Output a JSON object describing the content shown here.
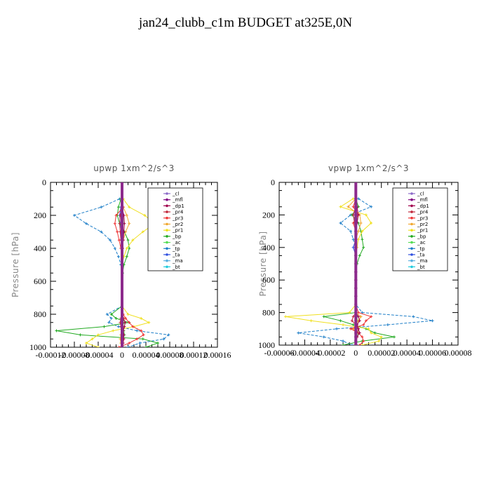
{
  "title": "jan24_clubb_c1m  BUDGET at325E,0N",
  "chart_data": [
    {
      "type": "line",
      "title": "upwp   1xm^2/s^3",
      "ylabel": "Pressure [hPa]",
      "xlim": [
        -0.00012,
        0.00016
      ],
      "xticks": [
        "-0.00012",
        "-0.00008",
        "-0.00004",
        "0",
        "0.00004",
        "0.00008",
        "0.00012",
        "0.00016"
      ],
      "ylim": [
        1000,
        0
      ],
      "yticks": [
        "0",
        "200",
        "400",
        "600",
        "800",
        "1000"
      ],
      "legend_position": "top-right",
      "pressure": [
        100,
        150,
        200,
        250,
        300,
        350,
        400,
        450,
        500,
        550,
        600,
        650,
        700,
        750,
        800,
        825,
        850,
        875,
        900,
        925,
        950,
        975,
        1000
      ],
      "series": [
        {
          "name": "_cl",
          "color": "#8c6bc8",
          "values": [
            0,
            0,
            0,
            0,
            0,
            0,
            0,
            0,
            0,
            0,
            0,
            0,
            0,
            0,
            0,
            0,
            0,
            0,
            0,
            0,
            0,
            0,
            0
          ]
        },
        {
          "name": "_mfl",
          "color": "#800080",
          "values": [
            0,
            0,
            0,
            0,
            0,
            0,
            0,
            0,
            0,
            0,
            0,
            0,
            0,
            0,
            0,
            0,
            0,
            0,
            0,
            0,
            0,
            0,
            0
          ]
        },
        {
          "name": "_dp1",
          "color": "#a0004c",
          "values": [
            0,
            0,
            3e-06,
            4e-06,
            3e-06,
            2e-06,
            1e-06,
            0,
            0,
            0,
            0,
            0,
            0,
            0,
            0,
            2e-06,
            5e-06,
            4e-06,
            2e-06,
            3e-06,
            2e-06,
            1e-06,
            0
          ]
        },
        {
          "name": "_pr4",
          "color": "#c0283c",
          "values": [
            0,
            0,
            -3e-06,
            -4e-06,
            -3e-06,
            -2e-06,
            0,
            0,
            0,
            0,
            0,
            0,
            0,
            0,
            0,
            -2e-06,
            -3e-06,
            -2e-06,
            0,
            2e-06,
            3e-06,
            2e-06,
            0
          ]
        },
        {
          "name": "_pr3",
          "color": "#ee3333",
          "values": [
            0,
            2e-06,
            -1e-05,
            -1.2e-05,
            -8e-06,
            -5e-06,
            -2e-06,
            0,
            0,
            0,
            0,
            0,
            0,
            0,
            2e-06,
            6e-06,
            1.2e-05,
            1.8e-05,
            3.2e-05,
            3.6e-05,
            2.5e-05,
            1.2e-05,
            -5e-06
          ]
        },
        {
          "name": "_pr2",
          "color": "#f0a830",
          "values": [
            0,
            2e-06,
            8e-06,
            1.2e-05,
            6e-06,
            2e-06,
            1e-06,
            0,
            0,
            0,
            0,
            0,
            0,
            0,
            0,
            3e-06,
            5e-06,
            4e-06,
            0,
            -2e-06,
            -3e-06,
            -2e-06,
            0
          ]
        },
        {
          "name": "_pr1",
          "color": "#f0e020",
          "values": [
            2e-06,
            1.2e-05,
            3.8e-05,
            5.5e-05,
            3.5e-05,
            1.8e-05,
            8e-06,
            3e-06,
            0,
            0,
            0,
            0,
            0,
            0,
            1e-05,
            3.2e-05,
            4.5e-05,
            2e-05,
            -1.5e-05,
            -4e-05,
            -5e-05,
            -6e-05,
            -4e-05
          ]
        },
        {
          "name": "_bp",
          "color": "#22aa22",
          "values": [
            -2e-06,
            -6e-06,
            -8e-06,
            -4e-06,
            4e-06,
            1e-05,
            1.2e-05,
            8e-06,
            3e-06,
            1e-06,
            0,
            0,
            0,
            0,
            -1.8e-05,
            -1e-05,
            1.2e-05,
            -3e-05,
            -0.00011,
            -7e-05,
            3.5e-05,
            6e-05,
            4e-05
          ]
        },
        {
          "name": "_ac",
          "color": "#55dd55",
          "values": [
            0,
            1e-06,
            2e-06,
            2e-06,
            1e-06,
            0,
            0,
            0,
            0,
            0,
            0,
            0,
            0,
            0,
            0,
            1e-06,
            2e-06,
            2e-06,
            3e-06,
            4e-06,
            2e-06,
            1e-06,
            0
          ]
        },
        {
          "name": "_tp",
          "color": "#1f7fc8",
          "values": [
            -4e-06,
            -3.5e-05,
            -8e-05,
            -6e-05,
            -3.5e-05,
            -2e-05,
            -1.2e-05,
            -6e-06,
            -2e-06,
            0,
            0,
            0,
            0,
            0,
            -2.5e-05,
            -1.8e-05,
            -2.2e-05,
            -6e-06,
            2.5e-05,
            7.8e-05,
            7e-05,
            3e-05,
            1e-05
          ]
        },
        {
          "name": "_ta",
          "color": "#3050e0",
          "values": [
            0,
            -2e-06,
            -4e-06,
            -3e-06,
            -1e-06,
            0,
            0,
            0,
            0,
            0,
            0,
            0,
            0,
            0,
            0,
            0,
            0,
            0,
            1e-06,
            2e-06,
            1e-06,
            0,
            0
          ]
        },
        {
          "name": "_ma",
          "color": "#5ab0e0",
          "values": [
            0,
            0,
            0,
            0,
            0,
            0,
            0,
            0,
            0,
            0,
            0,
            0,
            0,
            0,
            0,
            0,
            0,
            0,
            0,
            0,
            0,
            0,
            0
          ]
        },
        {
          "name": "_bt",
          "color": "#22ccdd",
          "values": [
            0,
            0,
            0,
            0,
            0,
            0,
            0,
            0,
            0,
            0,
            0,
            0,
            0,
            0,
            0,
            0,
            0,
            0,
            0,
            0,
            0,
            0,
            0
          ]
        }
      ]
    },
    {
      "type": "line",
      "title": "vpwp   1xm^2/s^3",
      "ylabel": "Pressure [hPa]",
      "xlim": [
        -6e-05,
        8e-05
      ],
      "xticks": [
        "-0.00006",
        "-0.00004",
        "-0.00002",
        "0",
        "0.00002",
        "0.00004",
        "0.00006",
        "0.00008"
      ],
      "ylim": [
        1000,
        0
      ],
      "yticks": [
        "0",
        "200",
        "400",
        "600",
        "800",
        "1000"
      ],
      "legend_position": "top-right",
      "pressure": [
        100,
        150,
        200,
        250,
        300,
        350,
        400,
        450,
        500,
        550,
        600,
        650,
        700,
        750,
        800,
        825,
        850,
        875,
        900,
        925,
        950,
        975,
        1000
      ],
      "series": [
        {
          "name": "_cl",
          "color": "#8c6bc8",
          "values": [
            0,
            0,
            0,
            0,
            0,
            0,
            0,
            0,
            0,
            0,
            0,
            0,
            0,
            0,
            0,
            0,
            0,
            0,
            0,
            0,
            0,
            0,
            0
          ]
        },
        {
          "name": "_mfl",
          "color": "#800080",
          "values": [
            0,
            0,
            0,
            0,
            0,
            0,
            0,
            0,
            0,
            0,
            0,
            0,
            0,
            0,
            0,
            0,
            0,
            0,
            0,
            0,
            0,
            0,
            0
          ]
        },
        {
          "name": "_dp1",
          "color": "#a0004c",
          "values": [
            0,
            1e-06,
            2e-06,
            1e-06,
            0,
            0,
            0,
            0,
            0,
            0,
            0,
            0,
            0,
            0,
            0,
            2e-06,
            3e-06,
            1e-06,
            2e-06,
            3e-06,
            1e-06,
            0,
            0
          ]
        },
        {
          "name": "_pr4",
          "color": "#c0283c",
          "values": [
            0,
            0,
            -2e-06,
            -1e-06,
            0,
            0,
            0,
            0,
            0,
            0,
            0,
            0,
            0,
            0,
            0,
            -2e-06,
            -3e-06,
            0,
            2e-06,
            1e-06,
            0,
            0,
            0
          ]
        },
        {
          "name": "_pr3",
          "color": "#ee3333",
          "values": [
            0,
            -2e-06,
            2e-06,
            -2e-06,
            0,
            0,
            0,
            0,
            0,
            0,
            0,
            0,
            0,
            0,
            2e-06,
            1.2e-05,
            8e-06,
            6e-06,
            -4e-06,
            2e-06,
            5e-06,
            6e-06,
            3e-06
          ]
        },
        {
          "name": "_pr2",
          "color": "#f0a830",
          "values": [
            0,
            -6e-06,
            3e-06,
            4e-06,
            2e-06,
            0,
            0,
            0,
            0,
            0,
            0,
            0,
            0,
            0,
            0,
            4e-06,
            2e-06,
            0,
            -2e-06,
            0,
            1e-06,
            0,
            0
          ]
        },
        {
          "name": "_pr1",
          "color": "#f0e020",
          "values": [
            -2e-06,
            -1.2e-05,
            8e-06,
            1.2e-05,
            5e-06,
            2e-06,
            1e-06,
            0,
            0,
            0,
            0,
            0,
            0,
            0,
            -5e-06,
            -5.5e-05,
            -3.5e-05,
            -1e-05,
            1e-05,
            1.2e-05,
            2e-05,
            1.8e-05,
            5e-06
          ]
        },
        {
          "name": "_bp",
          "color": "#22aa22",
          "values": [
            0,
            2e-06,
            -3e-06,
            2e-06,
            4e-06,
            5e-06,
            6e-06,
            3e-06,
            1e-06,
            0,
            0,
            0,
            0,
            0,
            0,
            -2.5e-05,
            -1.2e-05,
            -2e-06,
            8e-06,
            1.5e-05,
            3e-05,
            5e-06,
            -1e-05
          ]
        },
        {
          "name": "_ac",
          "color": "#55dd55",
          "values": [
            0,
            0,
            1e-06,
            1e-06,
            0,
            0,
            0,
            0,
            0,
            0,
            0,
            0,
            0,
            0,
            0,
            1e-06,
            1e-06,
            1e-06,
            2e-06,
            2e-06,
            1e-06,
            0,
            0
          ]
        },
        {
          "name": "_tp",
          "color": "#1f7fc8",
          "values": [
            2e-06,
            1.2e-05,
            -4e-06,
            -1.2e-05,
            -4e-06,
            -2e-06,
            0,
            0,
            0,
            0,
            0,
            0,
            0,
            0,
            5e-06,
            4.5e-05,
            6e-05,
            2.5e-05,
            -1.5e-05,
            -4.5e-05,
            -2.5e-05,
            -1e-05,
            -3e-06
          ]
        },
        {
          "name": "_ta",
          "color": "#3050e0",
          "values": [
            0,
            0,
            -2e-06,
            -1e-06,
            0,
            0,
            -2e-06,
            0,
            0,
            0,
            0,
            0,
            0,
            0,
            0,
            0,
            0,
            0,
            0,
            0,
            0,
            0,
            0
          ]
        },
        {
          "name": "_ma",
          "color": "#5ab0e0",
          "values": [
            0,
            0,
            0,
            0,
            0,
            0,
            0,
            0,
            0,
            0,
            0,
            0,
            0,
            0,
            0,
            0,
            0,
            0,
            0,
            0,
            0,
            0,
            0
          ]
        },
        {
          "name": "_bt",
          "color": "#22ccdd",
          "values": [
            0,
            0,
            0,
            0,
            0,
            0,
            0,
            0,
            0,
            0,
            0,
            0,
            0,
            0,
            0,
            0,
            0,
            0,
            0,
            0,
            0,
            0,
            0
          ]
        }
      ]
    }
  ]
}
